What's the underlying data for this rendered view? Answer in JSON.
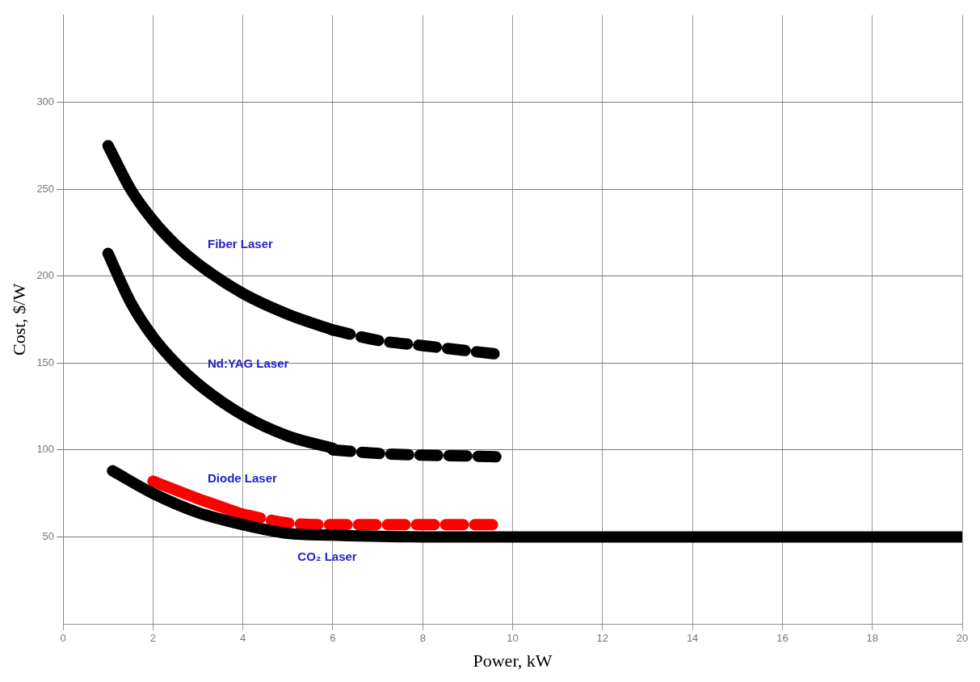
{
  "chart_data": {
    "type": "line",
    "xlabel": "Power, kW",
    "ylabel": "Cost, $/W",
    "xlim": [
      0,
      20
    ],
    "ylim": [
      0,
      350
    ],
    "xticks": [
      0,
      2,
      4,
      6,
      8,
      10,
      12,
      14,
      16,
      18,
      20
    ],
    "yticks": [
      50,
      100,
      150,
      200,
      250,
      300
    ],
    "grid": true,
    "legend": false,
    "marker": "none",
    "series": [
      {
        "name": "Fiber Laser",
        "color": "#000000",
        "line_style": "solid",
        "x": [
          1,
          1.5,
          2,
          2.5,
          3,
          4,
          5,
          6
        ],
        "values": [
          275,
          250,
          232,
          218,
          207,
          190,
          178,
          169
        ]
      },
      {
        "color": "#000000",
        "line_style": "dashed",
        "x": [
          6,
          7,
          8,
          9,
          9.7
        ],
        "values": [
          169,
          163,
          160,
          157,
          155
        ]
      },
      {
        "name": "Nd:YAG Laser",
        "color": "#000000",
        "line_style": "solid",
        "x": [
          1,
          1.5,
          2,
          2.5,
          3,
          4,
          5,
          6
        ],
        "values": [
          213,
          185,
          165,
          150,
          138,
          120,
          108,
          101
        ]
      },
      {
        "color": "#000000",
        "line_style": "dashed",
        "x": [
          6,
          7,
          8,
          9,
          9.7
        ],
        "values": [
          100,
          98,
          97,
          96.5,
          96
        ]
      },
      {
        "name": "CO₂ Laser",
        "color": "#000000",
        "line_style": "solid",
        "x": [
          1.1,
          2,
          3,
          4,
          5,
          6,
          8,
          20
        ],
        "values": [
          88,
          75,
          64,
          57,
          52,
          51,
          50,
          50
        ]
      },
      {
        "name": "Diode Laser",
        "color": "#ff0000",
        "line_style": "solid",
        "x": [
          2,
          3,
          4
        ],
        "values": [
          82,
          72,
          63
        ]
      },
      {
        "color": "#ff0000",
        "line_style": "dashed",
        "x": [
          4,
          5,
          6,
          7,
          8,
          9,
          9.6
        ],
        "values": [
          63,
          58,
          57,
          57,
          57,
          57,
          57
        ]
      }
    ]
  }
}
